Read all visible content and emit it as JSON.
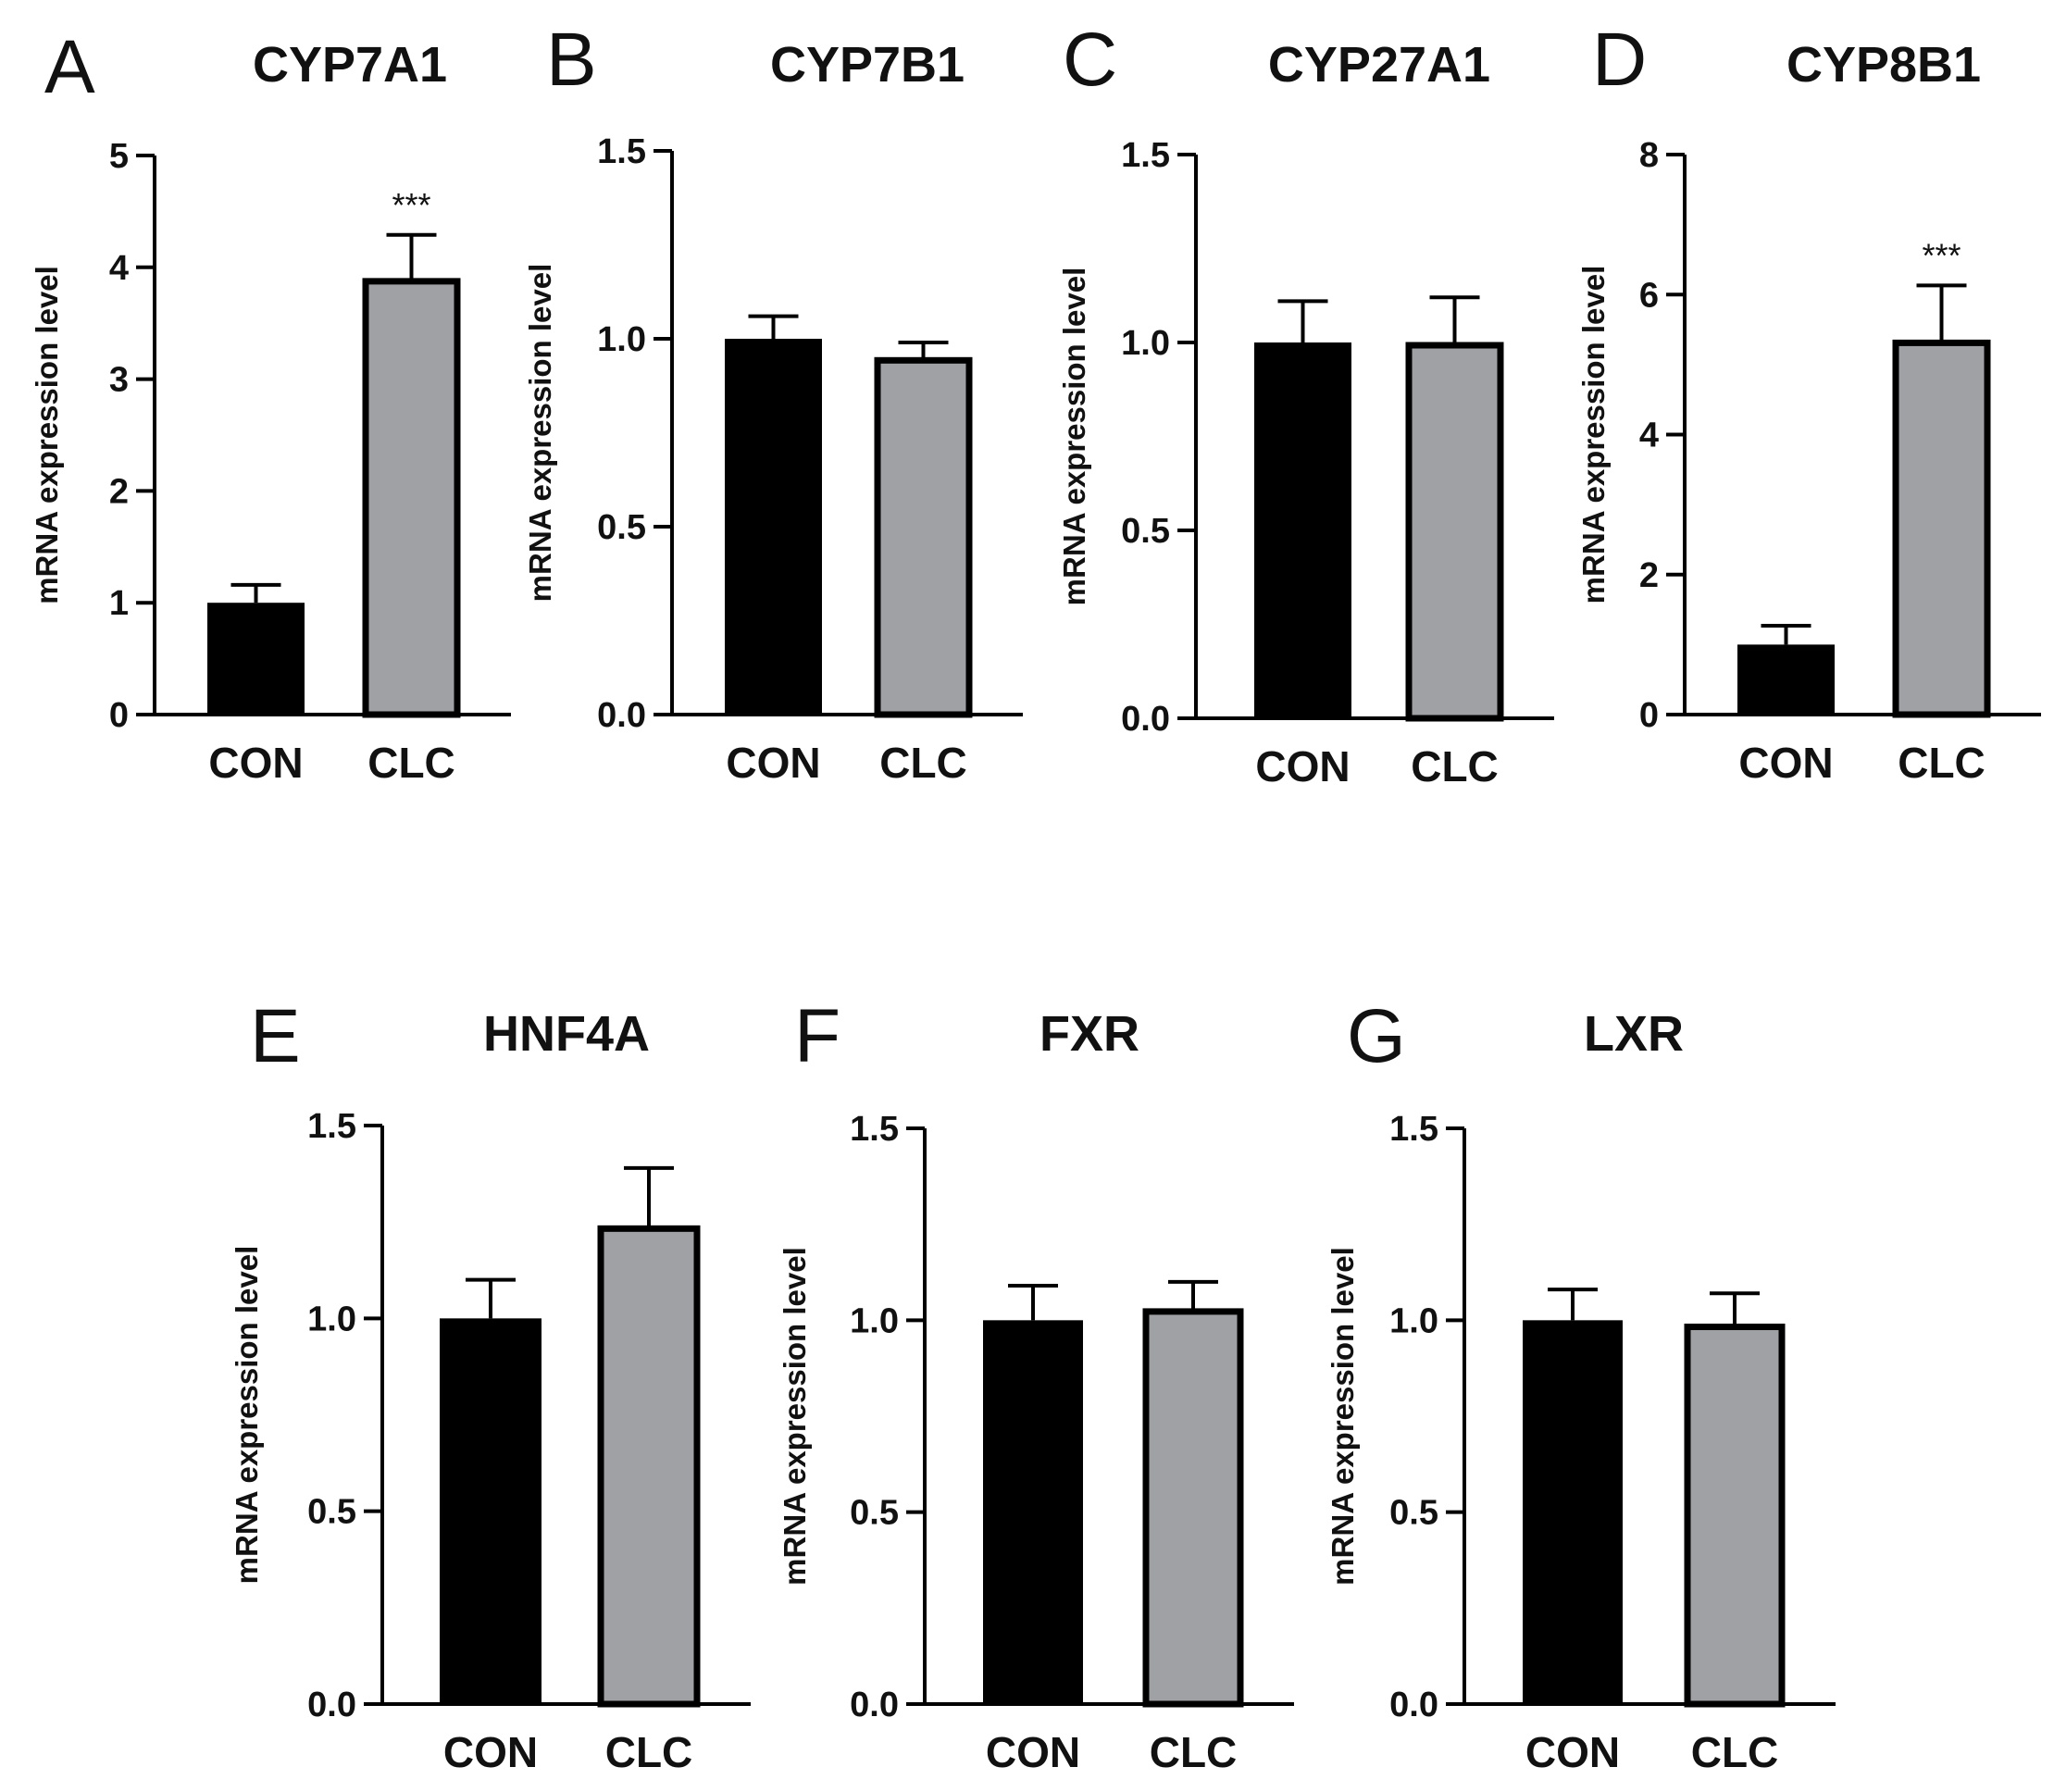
{
  "chart_data": [
    {
      "panel": "A",
      "type": "bar",
      "title": "CYP7A1",
      "categories": [
        "CON",
        "CLC"
      ],
      "values": [
        1.0,
        3.9
      ],
      "errors": [
        0.16,
        0.39
      ],
      "significance": [
        "",
        "***"
      ],
      "ylabel": "mRNA expression level",
      "xlabel": "",
      "ylim": [
        0,
        5
      ],
      "yticks": [
        0,
        1,
        2,
        3,
        4,
        5
      ],
      "ytick_labels": [
        "0",
        "1",
        "2",
        "3",
        "4",
        "5"
      ],
      "colors": [
        "#000000",
        "#a0a1a5"
      ]
    },
    {
      "panel": "B",
      "type": "bar",
      "title": "CYP7B1",
      "categories": [
        "CON",
        "CLC"
      ],
      "values": [
        1.0,
        0.95
      ],
      "errors": [
        0.06,
        0.04
      ],
      "significance": [
        "",
        ""
      ],
      "ylabel": "mRNA expression level",
      "xlabel": "",
      "ylim": [
        0,
        1.5
      ],
      "yticks": [
        0,
        0.5,
        1.0,
        1.5
      ],
      "ytick_labels": [
        "0.0",
        "0.5",
        "1.0",
        "1.5"
      ],
      "colors": [
        "#000000",
        "#a0a1a5"
      ]
    },
    {
      "panel": "C",
      "type": "bar",
      "title": "CYP27A1",
      "categories": [
        "CON",
        "CLC"
      ],
      "values": [
        1.0,
        1.0
      ],
      "errors": [
        0.11,
        0.12
      ],
      "significance": [
        "",
        ""
      ],
      "ylabel": "mRNA expression level",
      "xlabel": "",
      "ylim": [
        0,
        1.5
      ],
      "yticks": [
        0,
        0.5,
        1.0,
        1.5
      ],
      "ytick_labels": [
        "0.0",
        "0.5",
        "1.0",
        "1.5"
      ],
      "colors": [
        "#000000",
        "#a0a1a5"
      ]
    },
    {
      "panel": "D",
      "type": "bar",
      "title": "CYP8B1",
      "categories": [
        "CON",
        "CLC"
      ],
      "values": [
        1.0,
        5.35
      ],
      "errors": [
        0.27,
        0.78
      ],
      "significance": [
        "",
        "***"
      ],
      "ylabel": "mRNA expression level",
      "xlabel": "",
      "ylim": [
        0,
        8
      ],
      "yticks": [
        0,
        2,
        4,
        6,
        8
      ],
      "ytick_labels": [
        "0",
        "2",
        "4",
        "6",
        "8"
      ],
      "colors": [
        "#000000",
        "#a0a1a5"
      ]
    },
    {
      "panel": "E",
      "type": "bar",
      "title": "HNF4A",
      "categories": [
        "CON",
        "CLC"
      ],
      "values": [
        1.0,
        1.24
      ],
      "errors": [
        0.1,
        0.15
      ],
      "significance": [
        "",
        ""
      ],
      "ylabel": "mRNA expression level",
      "xlabel": "",
      "ylim": [
        0,
        1.5
      ],
      "yticks": [
        0,
        0.5,
        1.0,
        1.5
      ],
      "ytick_labels": [
        "0.0",
        "0.5",
        "1.0",
        "1.5"
      ],
      "colors": [
        "#000000",
        "#a0a1a5"
      ]
    },
    {
      "panel": "F",
      "type": "bar",
      "title": "FXR",
      "categories": [
        "CON",
        "CLC"
      ],
      "values": [
        1.0,
        1.03
      ],
      "errors": [
        0.09,
        0.07
      ],
      "significance": [
        "",
        ""
      ],
      "ylabel": "mRNA expression level",
      "xlabel": "",
      "ylim": [
        0,
        1.5
      ],
      "yticks": [
        0,
        0.5,
        1.0,
        1.5
      ],
      "ytick_labels": [
        "0.0",
        "0.5",
        "1.0",
        "1.5"
      ],
      "colors": [
        "#000000",
        "#a0a1a5"
      ]
    },
    {
      "panel": "G",
      "type": "bar",
      "title": "LXR",
      "categories": [
        "CON",
        "CLC"
      ],
      "values": [
        1.0,
        0.99
      ],
      "errors": [
        0.08,
        0.08
      ],
      "significance": [
        "",
        ""
      ],
      "ylabel": "mRNA expression level",
      "xlabel": "",
      "ylim": [
        0,
        1.5
      ],
      "yticks": [
        0,
        0.5,
        1.0,
        1.5
      ],
      "ytick_labels": [
        "0.0",
        "0.5",
        "1.0",
        "1.5"
      ],
      "colors": [
        "#000000",
        "#a0a1a5"
      ]
    }
  ]
}
